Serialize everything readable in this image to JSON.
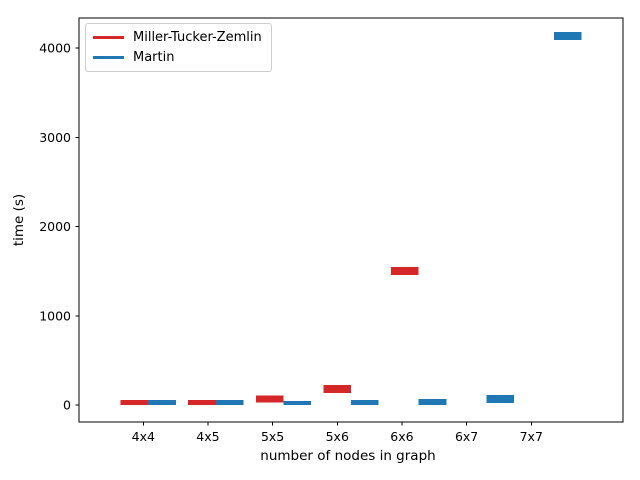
{
  "figure": {
    "background": "#ffffff"
  },
  "chart_data": {
    "type": "bar",
    "variant": "floating-range-bars",
    "title": "",
    "xlabel": "number of nodes in graph",
    "ylabel": "time (s)",
    "categories": [
      "4x4",
      "4x5",
      "5x5",
      "5x6",
      "6x6",
      "6x7",
      "7x7"
    ],
    "series": [
      {
        "name": "Miller-Tucker-Zemlin",
        "color": "#d62728",
        "ranges_s": [
          [
            0,
            55
          ],
          [
            0,
            55
          ],
          [
            30,
            105
          ],
          [
            135,
            225
          ],
          [
            1455,
            1545
          ],
          null,
          null
        ]
      },
      {
        "name": "Martin",
        "color": "#1f77b4",
        "ranges_s": [
          [
            0,
            55
          ],
          [
            0,
            55
          ],
          [
            0,
            45
          ],
          [
            0,
            55
          ],
          [
            0,
            65
          ],
          [
            25,
            110
          ],
          [
            4090,
            4180
          ]
        ]
      }
    ],
    "y_ticks": [
      0,
      1000,
      2000,
      3000,
      4000
    ],
    "ylim": [
      -190,
      4340
    ],
    "grid": false,
    "legend_position": "upper left",
    "axis_color": "#000000"
  }
}
